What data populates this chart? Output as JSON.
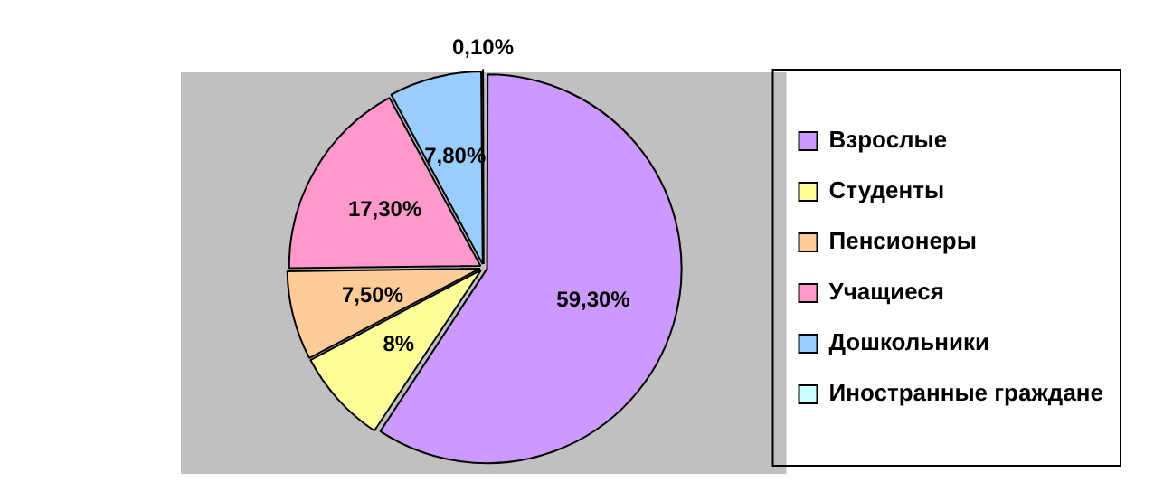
{
  "chart_data": {
    "type": "pie",
    "categories": [
      "Взрослые",
      "Студенты",
      "Пенсионеры",
      "Учащиеся",
      "Дошкольники",
      "Иностранные граждане"
    ],
    "values": [
      59.3,
      8,
      7.5,
      17.3,
      7.8,
      0.1
    ],
    "value_labels": [
      "59,30%",
      "8%",
      "7,50%",
      "17,30%",
      "7,80%",
      "0,10%"
    ],
    "colors": [
      "#cc99ff",
      "#ffff99",
      "#ffcc99",
      "#ff99cc",
      "#99ccff",
      "#ccffff"
    ],
    "legend": "right"
  }
}
